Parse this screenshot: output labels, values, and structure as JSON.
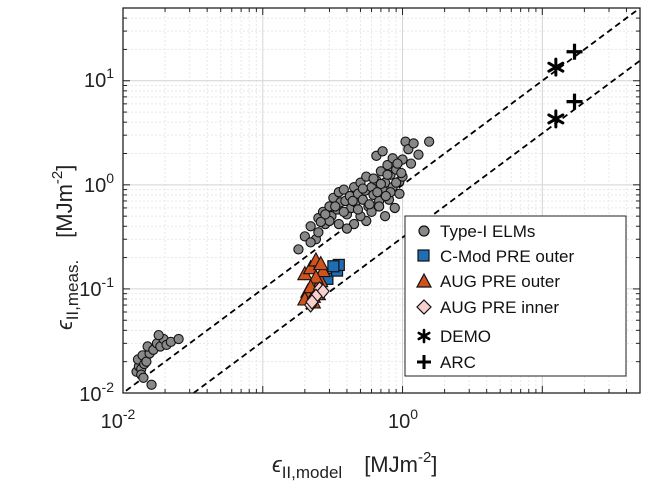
{
  "chart_data": {
    "type": "scatter",
    "x_scale": "log",
    "y_scale": "log",
    "xlim": [
      0.01,
      50
    ],
    "ylim": [
      0.01,
      50
    ],
    "grid": true,
    "legend_position": "bottom-right",
    "xlabel": {
      "symbol": "ϵ",
      "subscript": "II,model",
      "unit": "[MJm",
      "unit_exp": "-2",
      "unit_close": "]"
    },
    "ylabel": {
      "symbol": "ϵ",
      "subscript": "II,meas.",
      "unit": "[MJm",
      "unit_exp": "-2",
      "unit_close": "]"
    },
    "x_ticks": [
      {
        "base": "10",
        "exp": "-2",
        "value": 0.01
      },
      {
        "base": "10",
        "exp": "0",
        "value": 1
      }
    ],
    "y_ticks": [
      {
        "base": "10",
        "exp": "-2",
        "value": 0.01
      },
      {
        "base": "10",
        "exp": "-1",
        "value": 0.1
      },
      {
        "base": "10",
        "exp": "0",
        "value": 1
      },
      {
        "base": "10",
        "exp": "1",
        "value": 10
      }
    ],
    "reference_lines": [
      {
        "style": "dashed",
        "from": [
          0.0105,
          0.0105
        ],
        "to": [
          50,
          50
        ]
      },
      {
        "style": "dashed",
        "from": [
          0.032,
          0.01
        ],
        "to": [
          50,
          15.6
        ]
      }
    ],
    "series": [
      {
        "name": "Type-I ELMs",
        "marker": "circle",
        "color": "#888888",
        "edge": "#111111",
        "points": [
          [
            0.0125,
            0.016
          ],
          [
            0.013,
            0.018
          ],
          [
            0.0128,
            0.021
          ],
          [
            0.0135,
            0.017
          ],
          [
            0.0142,
            0.019
          ],
          [
            0.0138,
            0.023
          ],
          [
            0.0147,
            0.02
          ],
          [
            0.0155,
            0.024
          ],
          [
            0.015,
            0.028
          ],
          [
            0.0165,
            0.026
          ],
          [
            0.0175,
            0.03
          ],
          [
            0.0185,
            0.028
          ],
          [
            0.0195,
            0.033
          ],
          [
            0.018,
            0.036
          ],
          [
            0.0205,
            0.029
          ],
          [
            0.022,
            0.031
          ],
          [
            0.025,
            0.033
          ],
          [
            0.016,
            0.012
          ],
          [
            0.0135,
            0.015
          ],
          [
            0.014,
            0.014
          ],
          [
            0.18,
            0.24
          ],
          [
            0.2,
            0.32
          ],
          [
            0.22,
            0.4
          ],
          [
            0.24,
            0.3
          ],
          [
            0.25,
            0.48
          ],
          [
            0.27,
            0.55
          ],
          [
            0.28,
            0.42
          ],
          [
            0.3,
            0.62
          ],
          [
            0.31,
            0.5
          ],
          [
            0.32,
            0.75
          ],
          [
            0.34,
            0.58
          ],
          [
            0.35,
            0.85
          ],
          [
            0.36,
            0.68
          ],
          [
            0.38,
            0.9
          ],
          [
            0.39,
            0.7
          ],
          [
            0.4,
            0.52
          ],
          [
            0.42,
            0.78
          ],
          [
            0.43,
            0.6
          ],
          [
            0.45,
            0.95
          ],
          [
            0.46,
            0.68
          ],
          [
            0.48,
            0.82
          ],
          [
            0.5,
            1.05
          ],
          [
            0.52,
            0.72
          ],
          [
            0.54,
            0.88
          ],
          [
            0.55,
            1.2
          ],
          [
            0.57,
            0.62
          ],
          [
            0.6,
            0.95
          ],
          [
            0.62,
            0.8
          ],
          [
            0.65,
            1.1
          ],
          [
            0.68,
            0.7
          ],
          [
            0.7,
            1.35
          ],
          [
            0.72,
            0.9
          ],
          [
            0.75,
            1.05
          ],
          [
            0.78,
            1.55
          ],
          [
            0.8,
            0.72
          ],
          [
            0.82,
            1.25
          ],
          [
            0.85,
            0.95
          ],
          [
            0.9,
            1.4
          ],
          [
            0.95,
            1.08
          ],
          [
            1.0,
            1.75
          ],
          [
            1.05,
            2.6
          ],
          [
            1.1,
            2.2
          ],
          [
            1.2,
            2.5
          ],
          [
            0.95,
            0.82
          ],
          [
            0.88,
            0.6
          ],
          [
            0.75,
            0.5
          ],
          [
            0.6,
            0.55
          ],
          [
            0.55,
            0.45
          ],
          [
            0.5,
            0.5
          ],
          [
            0.45,
            0.42
          ],
          [
            0.4,
            0.38
          ],
          [
            0.35,
            0.42
          ],
          [
            0.3,
            0.45
          ],
          [
            0.25,
            0.35
          ],
          [
            0.22,
            0.28
          ],
          [
            0.65,
            1.9
          ],
          [
            0.72,
            2.1
          ],
          [
            0.85,
            1.8
          ],
          [
            0.92,
            1.6
          ],
          [
            0.78,
            1.25
          ],
          [
            0.66,
            0.85
          ],
          [
            0.58,
            0.65
          ],
          [
            0.48,
            0.58
          ],
          [
            0.44,
            0.7
          ],
          [
            0.52,
            0.92
          ],
          [
            0.62,
            1.15
          ],
          [
            0.7,
            1.02
          ],
          [
            0.9,
            1.05
          ],
          [
            1.0,
            1.2
          ],
          [
            0.82,
            0.85
          ],
          [
            0.76,
            0.78
          ],
          [
            0.68,
            0.62
          ],
          [
            0.38,
            0.55
          ],
          [
            0.33,
            0.62
          ],
          [
            0.28,
            0.52
          ],
          [
            0.26,
            0.44
          ],
          [
            1.55,
            2.6
          ],
          [
            1.3,
            1.95
          ],
          [
            1.15,
            1.6
          ],
          [
            0.98,
            1.3
          ]
        ]
      },
      {
        "name": "C-Mod PRE outer",
        "marker": "square",
        "color": "#1f6db5",
        "edge": "#111111",
        "points": [
          [
            0.29,
            0.125
          ],
          [
            0.34,
            0.15
          ],
          [
            0.35,
            0.17
          ],
          [
            0.32,
            0.165
          ]
        ]
      },
      {
        "name": "AUG PRE outer",
        "marker": "triangle",
        "color": "#d0521c",
        "edge": "#111111",
        "points": [
          [
            0.2,
            0.14
          ],
          [
            0.22,
            0.16
          ],
          [
            0.24,
            0.19
          ],
          [
            0.25,
            0.11
          ],
          [
            0.21,
            0.095
          ],
          [
            0.23,
            0.085
          ],
          [
            0.26,
            0.12
          ],
          [
            0.27,
            0.15
          ],
          [
            0.24,
            0.13
          ],
          [
            0.22,
            0.105
          ],
          [
            0.2,
            0.08
          ],
          [
            0.26,
            0.175
          ],
          [
            0.25,
            0.09
          ],
          [
            0.23,
            0.075
          ]
        ]
      },
      {
        "name": "AUG PRE inner",
        "marker": "diamond",
        "color": "#f9cfcf",
        "edge": "#111111",
        "points": [
          [
            0.22,
            0.07
          ],
          [
            0.23,
            0.08
          ],
          [
            0.245,
            0.09
          ],
          [
            0.255,
            0.1
          ],
          [
            0.27,
            0.095
          ],
          [
            0.24,
            0.085
          ],
          [
            0.225,
            0.075
          ]
        ]
      },
      {
        "name": "DEMO",
        "marker": "asterisk",
        "color": "#000000",
        "edge": "#000000",
        "points": [
          [
            12.5,
            13.5
          ],
          [
            12.5,
            4.3
          ]
        ]
      },
      {
        "name": "ARC",
        "marker": "plus",
        "color": "#000000",
        "edge": "#000000",
        "points": [
          [
            17,
            19
          ],
          [
            17,
            6.3
          ]
        ]
      }
    ]
  }
}
